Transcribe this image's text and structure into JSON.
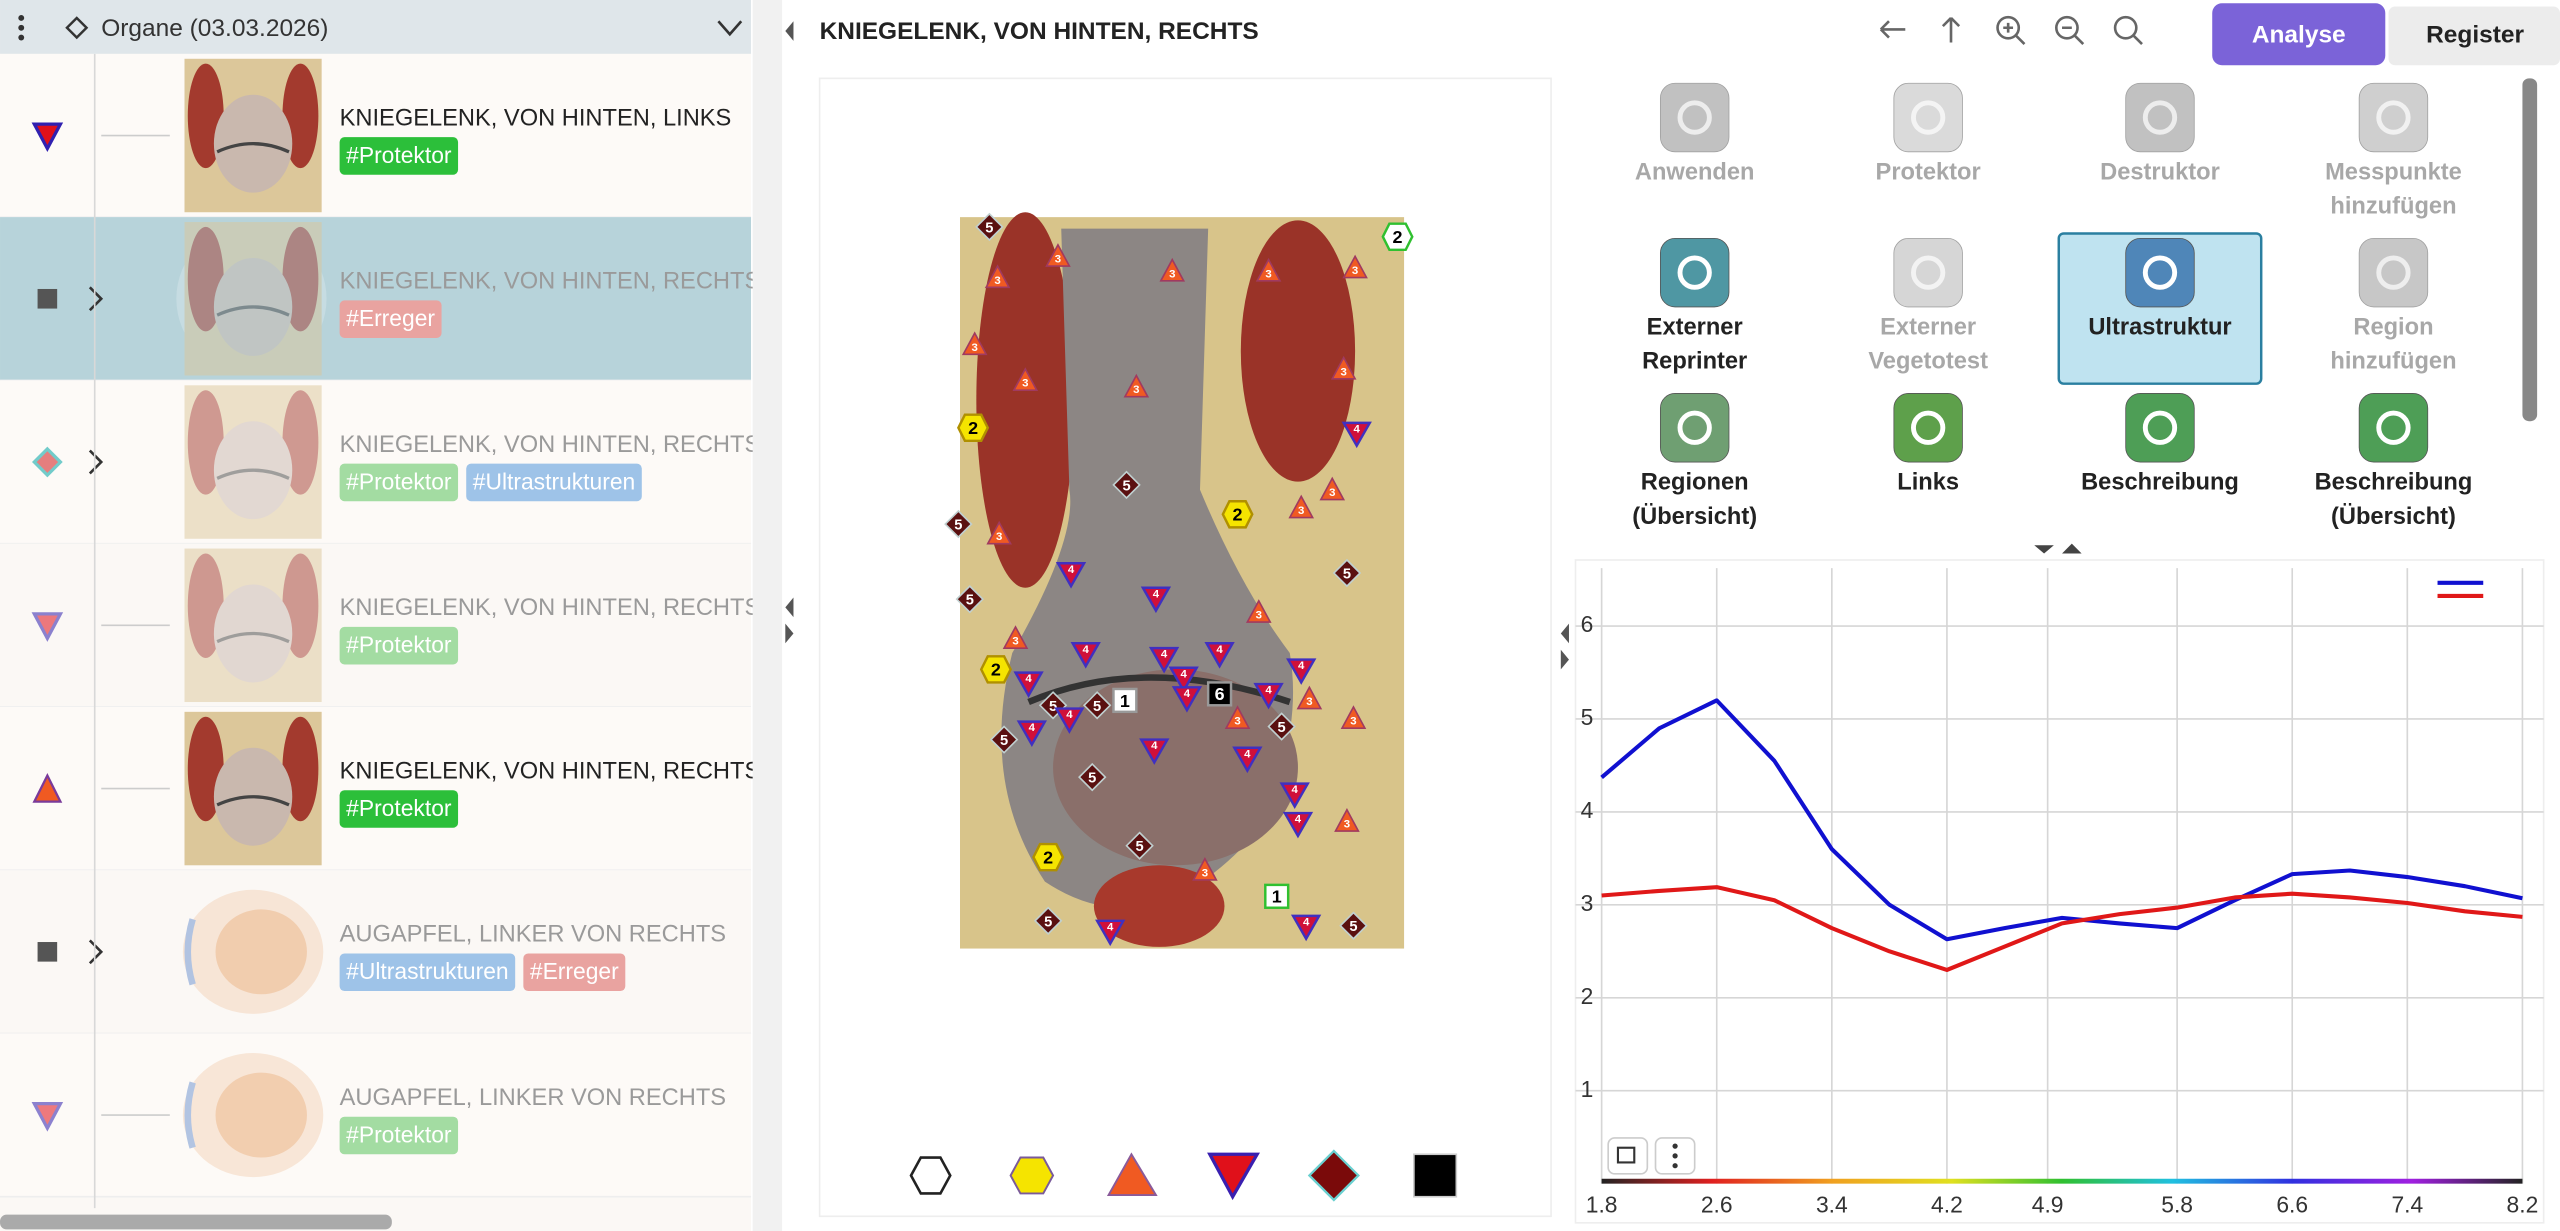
{
  "left_panel": {
    "header": "Organe (03.03.2026)",
    "items": [
      {
        "title": "KNIEGELENK, VON HINTEN, LINKS",
        "tags": [
          "#Protektor"
        ]
      },
      {
        "title": "KNIEGELENK, VON HINTEN, RECHTS",
        "tags": [
          "#Erreger"
        ]
      },
      {
        "title": "KNIEGELENK, VON HINTEN, RECHTS",
        "tags": [
          "#Protektor",
          "#Ultrastrukturen"
        ]
      },
      {
        "title": "KNIEGELENK, VON HINTEN, RECHTS",
        "tags": [
          "#Protektor"
        ]
      },
      {
        "title": "KNIEGELENK, VON HINTEN, RECHTS",
        "tags": [
          "#Protektor"
        ]
      },
      {
        "title": "AUGAPFEL, LINKER VON RECHTS",
        "tags": [
          "#Ultrastrukturen",
          "#Erreger"
        ]
      },
      {
        "title": "AUGAPFEL, LINKER VON RECHTS",
        "tags": [
          "#Protektor"
        ]
      }
    ]
  },
  "main": {
    "title": "KNIEGELENK, VON HINTEN, RECHTS",
    "tabs": [
      "Analyse",
      "Register"
    ],
    "tools": [
      {
        "label": [
          "Anwenden"
        ]
      },
      {
        "label": [
          "Protektor"
        ]
      },
      {
        "label": [
          "Destruktor"
        ]
      },
      {
        "label": [
          "Messpunkte",
          "hinzufügen"
        ]
      },
      {
        "label": [
          "Externer",
          "Reprinter"
        ]
      },
      {
        "label": [
          "Externer",
          "Vegetotest"
        ]
      },
      {
        "label": [
          "Ultrastruktur"
        ]
      },
      {
        "label": [
          "Region",
          "hinzufügen"
        ]
      },
      {
        "label": [
          "Regionen",
          "(Übersicht)"
        ]
      },
      {
        "label": [
          "Links"
        ]
      },
      {
        "label": [
          "Beschreibung"
        ]
      },
      {
        "label": [
          "Beschreibung",
          "(Übersicht)"
        ]
      }
    ],
    "image_markers": [
      {
        "shape": "hexagon",
        "labels": [
          "2",
          "2",
          "2",
          "2"
        ]
      },
      {
        "shape": "hexagon-outline",
        "labels": [
          "2"
        ]
      },
      {
        "shape": "square",
        "labels": [
          "1",
          "1"
        ]
      },
      {
        "shape": "square-dark",
        "labels": [
          "6"
        ]
      },
      {
        "shape": "diamond",
        "labels": [
          "5",
          "5",
          "5",
          "5",
          "5",
          "5",
          "5",
          "5",
          "5",
          "5",
          "5",
          "5",
          "5"
        ]
      },
      {
        "shape": "triangle-up",
        "labels": [
          "3",
          "3",
          "3",
          "3",
          "3",
          "3",
          "3",
          "3",
          "3",
          "3",
          "3",
          "3",
          "3",
          "3",
          "3",
          "3",
          "3",
          "3",
          "3"
        ]
      },
      {
        "shape": "triangle-down",
        "labels": [
          "4",
          "4",
          "4",
          "4",
          "4",
          "4",
          "4",
          "4",
          "4",
          "4",
          "4",
          "4",
          "4",
          "4",
          "4",
          "4",
          "4",
          "4",
          "4"
        ]
      }
    ]
  },
  "chart_data": {
    "type": "line",
    "x": [
      1.8,
      2.2,
      2.6,
      3.0,
      3.4,
      3.8,
      4.2,
      4.6,
      5.0,
      5.4,
      5.8,
      6.2,
      6.6,
      7.0,
      7.4,
      7.8,
      8.2
    ],
    "series": [
      {
        "color": "#1010d0",
        "values": [
          4.37,
          4.9,
          5.2,
          4.55,
          3.6,
          3.0,
          2.63,
          2.75,
          2.86,
          2.8,
          2.75,
          3.05,
          3.33,
          3.37,
          3.3,
          3.2,
          3.07
        ]
      },
      {
        "color": "#e01818",
        "values": [
          3.1,
          3.15,
          3.19,
          3.05,
          2.75,
          2.5,
          2.3,
          2.55,
          2.8,
          2.9,
          2.97,
          3.08,
          3.12,
          3.08,
          3.02,
          2.93,
          2.87
        ]
      }
    ],
    "xlim": [
      1.8,
      8.2
    ],
    "xticks": [
      1.8,
      2.6,
      3.4,
      4.2,
      4.9,
      5.8,
      6.6,
      7.4,
      8.2
    ],
    "ylim": [
      0,
      6.5
    ],
    "yticks": [
      1,
      2,
      3,
      4,
      5,
      6
    ],
    "grid": true
  }
}
